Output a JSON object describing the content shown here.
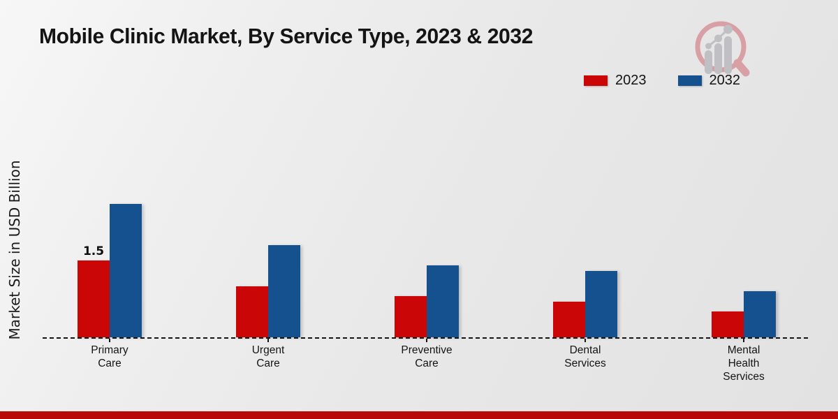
{
  "title": "Mobile Clinic Market, By Service Type, 2023 & 2032",
  "ylabel": "Market Size in USD Billion",
  "legend": [
    {
      "label": "2023",
      "color": "#cb0606"
    },
    {
      "label": "2032",
      "color": "#15518f"
    }
  ],
  "chart_data": {
    "type": "bar",
    "categories": [
      "Primary Care",
      "Urgent Care",
      "Preventive Care",
      "Dental Services",
      "Mental Health Services"
    ],
    "series": [
      {
        "name": "2023",
        "color": "#cb0606",
        "values": [
          1.5,
          1.0,
          0.8,
          0.7,
          0.5
        ]
      },
      {
        "name": "2032",
        "color": "#15518f",
        "values": [
          2.6,
          1.8,
          1.4,
          1.3,
          0.9
        ]
      }
    ],
    "data_labels": [
      {
        "series_index": 0,
        "category_index": 0,
        "text": "1.5"
      }
    ],
    "title": "Mobile Clinic Market, By Service Type, 2023 & 2032",
    "xlabel": "",
    "ylabel": "Market Size in USD Billion",
    "ylim": [
      0,
      2.8
    ],
    "grid": false,
    "baseline_style": "dashed",
    "legend_position": "top-right"
  },
  "watermark": {
    "name": "magnifier-bar-chart-logo"
  },
  "footer": {
    "bar_color": "#b90808"
  }
}
